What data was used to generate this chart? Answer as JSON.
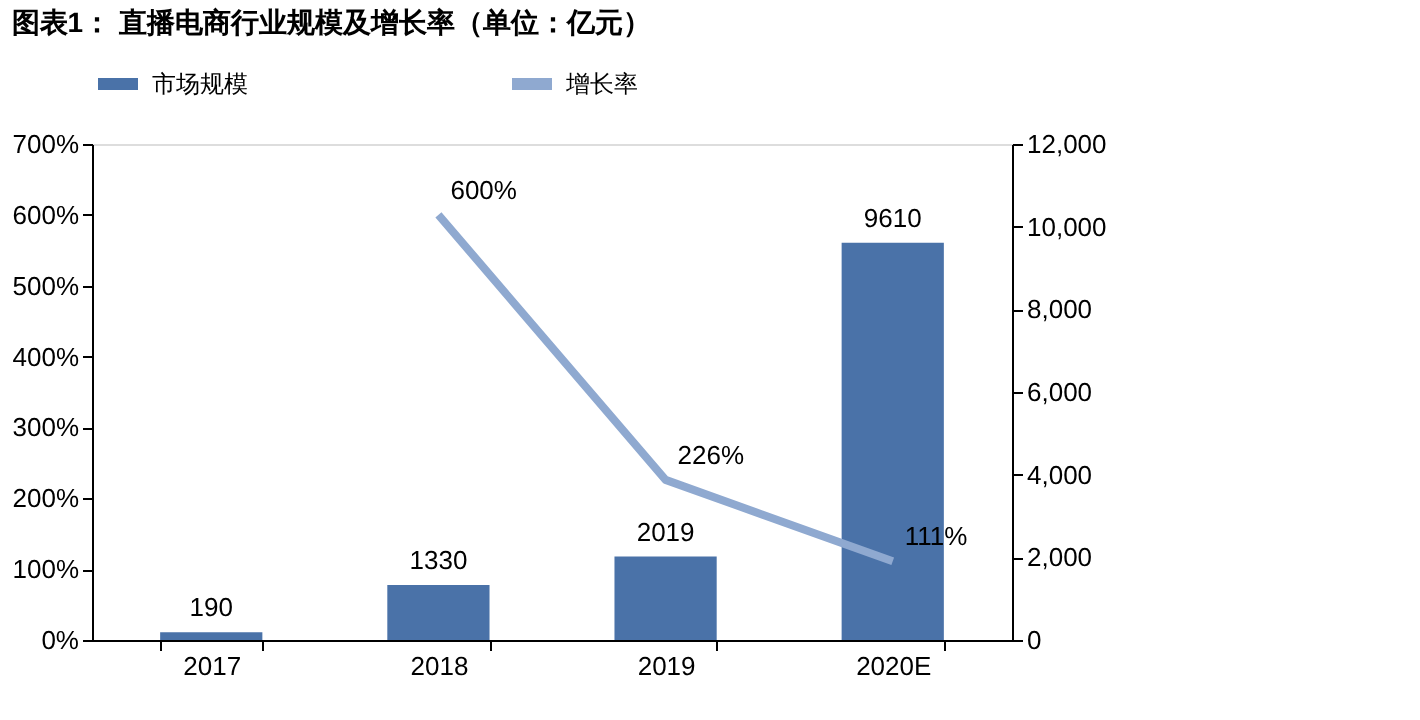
{
  "chart_data": {
    "type": "bar",
    "title": "图表1：  直播电商行业规模及增长率（单位：亿元）",
    "categories": [
      "2017",
      "2018",
      "2019",
      "2020E"
    ],
    "series": [
      {
        "name": "市场规模",
        "axis": "y2",
        "color": "#4a72a8",
        "values": [
          190,
          1330,
          2019,
          9610
        ],
        "value_labels": [
          "190",
          "1330",
          "2019",
          "9610"
        ]
      },
      {
        "name": "增长率",
        "type": "line",
        "axis": "y",
        "color": "#8fa9d0",
        "values": [
          null,
          600,
          226,
          111
        ],
        "value_labels": [
          null,
          "600%",
          "226%",
          "111%"
        ]
      }
    ],
    "ylim": [
      0,
      700
    ],
    "yticks": [
      {
        "value": 0,
        "label": "0%"
      },
      {
        "value": 100,
        "label": "100%"
      },
      {
        "value": 200,
        "label": "200%"
      },
      {
        "value": 300,
        "label": "300%"
      },
      {
        "value": 400,
        "label": "400%"
      },
      {
        "value": 500,
        "label": "500%"
      },
      {
        "value": 600,
        "label": "600%"
      },
      {
        "value": 700,
        "label": "700%"
      }
    ],
    "y2lim": [
      0,
      12000
    ],
    "y2ticks": [
      {
        "value": 0,
        "label": "0"
      },
      {
        "value": 2000,
        "label": "2,000"
      },
      {
        "value": 4000,
        "label": "4,000"
      },
      {
        "value": 6000,
        "label": "6,000"
      },
      {
        "value": 8000,
        "label": "8,000"
      },
      {
        "value": 10000,
        "label": "10,000"
      },
      {
        "value": 12000,
        "label": "12,000"
      }
    ],
    "legend": "top",
    "grid": false
  }
}
